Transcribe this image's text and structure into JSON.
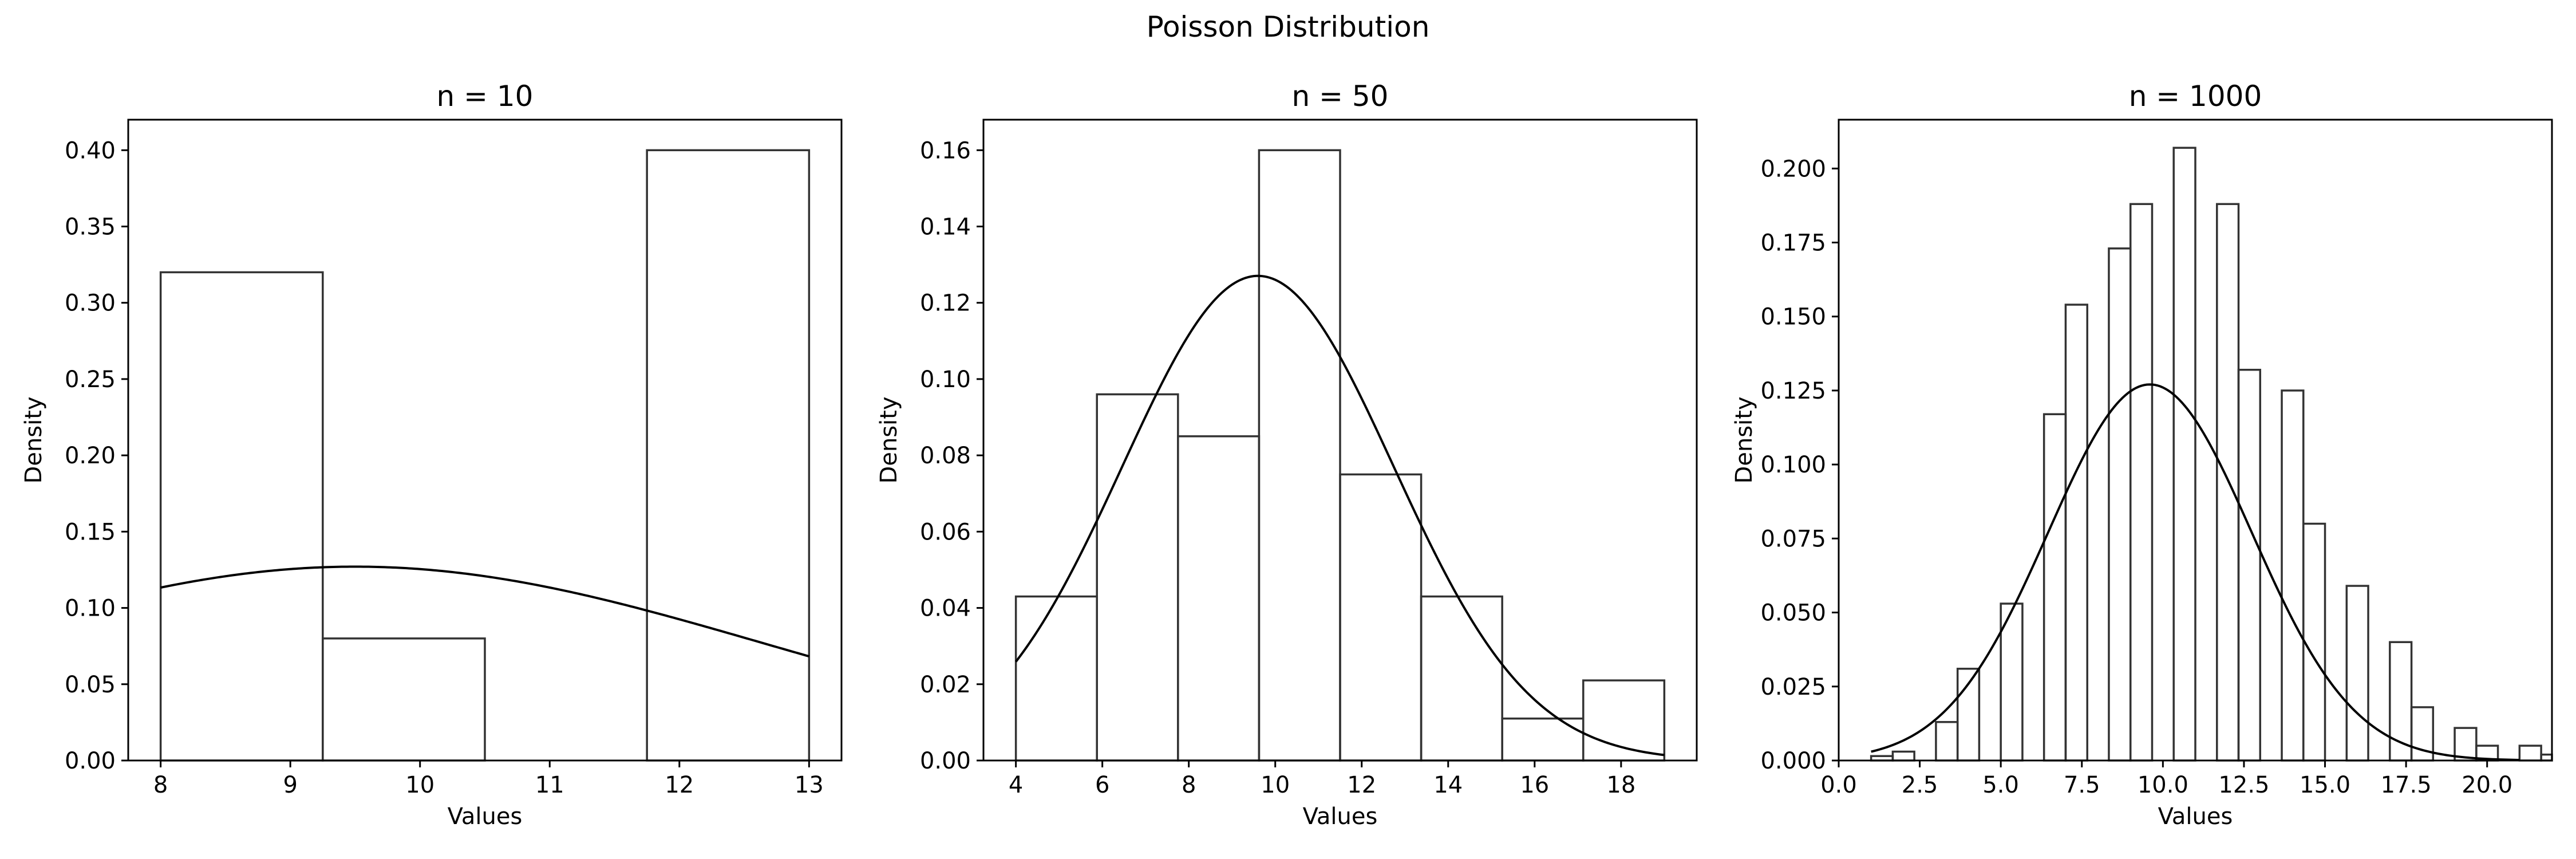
{
  "figure_title": "Poisson Distribution",
  "chart_data": [
    {
      "type": "bar",
      "subtype": "histogram_with_density_curve",
      "title": "n = 10",
      "xlabel": "Values",
      "ylabel": "Density",
      "xlim": [
        7.75,
        13.25
      ],
      "ylim": [
        0,
        0.42
      ],
      "xticks": [
        8,
        9,
        10,
        11,
        12,
        13
      ],
      "xtick_labels": [
        "8",
        "9",
        "10",
        "11",
        "12",
        "13"
      ],
      "yticks": [
        0,
        0.05,
        0.1,
        0.15,
        0.2,
        0.25,
        0.3,
        0.35,
        0.4
      ],
      "ytick_labels": [
        "0.00",
        "0.05",
        "0.10",
        "0.15",
        "0.20",
        "0.25",
        "0.30",
        "0.35",
        "0.40"
      ],
      "bins": [
        {
          "x0": 8.0,
          "x1": 9.25,
          "y": 0.32
        },
        {
          "x0": 9.25,
          "x1": 10.5,
          "y": 0.08
        },
        {
          "x0": 10.5,
          "x1": 11.75,
          "y": 0.0
        },
        {
          "x0": 11.75,
          "x1": 13.0,
          "y": 0.4
        }
      ],
      "curve": {
        "mean": 9.5,
        "sd": 3.14,
        "x_range": [
          8,
          13
        ]
      },
      "bar_color": "#333333",
      "curve_color": "#000000",
      "grid": false
    },
    {
      "type": "bar",
      "subtype": "histogram_with_density_curve",
      "title": "n = 50",
      "xlabel": "Values",
      "ylabel": "Density",
      "xlim": [
        3.25,
        19.75
      ],
      "ylim": [
        0,
        0.168
      ],
      "xticks": [
        4,
        6,
        8,
        10,
        12,
        14,
        16,
        18
      ],
      "xtick_labels": [
        "4",
        "6",
        "8",
        "10",
        "12",
        "14",
        "16",
        "18"
      ],
      "yticks": [
        0,
        0.02,
        0.04,
        0.06,
        0.08,
        0.1,
        0.12,
        0.14,
        0.16
      ],
      "ytick_labels": [
        "0.00",
        "0.02",
        "0.04",
        "0.06",
        "0.08",
        "0.10",
        "0.12",
        "0.14",
        "0.16"
      ],
      "bins": [
        {
          "x0": 4.0,
          "x1": 5.875,
          "y": 0.043
        },
        {
          "x0": 5.875,
          "x1": 7.75,
          "y": 0.096
        },
        {
          "x0": 7.75,
          "x1": 9.625,
          "y": 0.085
        },
        {
          "x0": 9.625,
          "x1": 11.5,
          "y": 0.16
        },
        {
          "x0": 11.5,
          "x1": 13.375,
          "y": 0.075
        },
        {
          "x0": 13.375,
          "x1": 15.25,
          "y": 0.043
        },
        {
          "x0": 15.25,
          "x1": 17.125,
          "y": 0.011
        },
        {
          "x0": 17.125,
          "x1": 19.0,
          "y": 0.021
        }
      ],
      "curve": {
        "mean": 9.6,
        "sd": 3.14,
        "x_range": [
          4,
          19
        ]
      },
      "bar_color": "#333333",
      "curve_color": "#000000",
      "grid": false
    },
    {
      "type": "bar",
      "subtype": "histogram_with_density_curve",
      "title": "n = 1000",
      "xlabel": "Values",
      "ylabel": "Density",
      "xlim": [
        0.0,
        22.0
      ],
      "ylim": [
        0,
        0.2165
      ],
      "xticks": [
        0,
        2.5,
        5,
        7.5,
        10,
        12.5,
        15,
        17.5,
        20
      ],
      "xtick_labels": [
        "0.0",
        "2.5",
        "5.0",
        "7.5",
        "10.0",
        "12.5",
        "15.0",
        "17.5",
        "20.0"
      ],
      "yticks": [
        0,
        0.025,
        0.05,
        0.075,
        0.1,
        0.125,
        0.15,
        0.175,
        0.2
      ],
      "ytick_labels": [
        "0.000",
        "0.025",
        "0.050",
        "0.075",
        "0.100",
        "0.125",
        "0.150",
        "0.175",
        "0.200"
      ],
      "bins": [
        {
          "x0": 1.0,
          "x1": 1.667,
          "y": 0.0015
        },
        {
          "x0": 1.667,
          "x1": 2.333,
          "y": 0.003
        },
        {
          "x0": 2.333,
          "x1": 3.0,
          "y": 0.0
        },
        {
          "x0": 3.0,
          "x1": 3.667,
          "y": 0.013
        },
        {
          "x0": 3.667,
          "x1": 4.333,
          "y": 0.031
        },
        {
          "x0": 4.333,
          "x1": 5.0,
          "y": 0.0
        },
        {
          "x0": 5.0,
          "x1": 5.667,
          "y": 0.053
        },
        {
          "x0": 5.667,
          "x1": 6.333,
          "y": 0.0
        },
        {
          "x0": 6.333,
          "x1": 7.0,
          "y": 0.117
        },
        {
          "x0": 7.0,
          "x1": 7.667,
          "y": 0.154
        },
        {
          "x0": 7.667,
          "x1": 8.333,
          "y": 0.0
        },
        {
          "x0": 8.333,
          "x1": 9.0,
          "y": 0.173
        },
        {
          "x0": 9.0,
          "x1": 9.667,
          "y": 0.188
        },
        {
          "x0": 9.667,
          "x1": 10.333,
          "y": 0.0
        },
        {
          "x0": 10.333,
          "x1": 11.0,
          "y": 0.207
        },
        {
          "x0": 11.0,
          "x1": 11.667,
          "y": 0.0
        },
        {
          "x0": 11.667,
          "x1": 12.333,
          "y": 0.188
        },
        {
          "x0": 12.333,
          "x1": 13.0,
          "y": 0.132
        },
        {
          "x0": 13.0,
          "x1": 13.667,
          "y": 0.0
        },
        {
          "x0": 13.667,
          "x1": 14.333,
          "y": 0.125
        },
        {
          "x0": 14.333,
          "x1": 15.0,
          "y": 0.08
        },
        {
          "x0": 15.0,
          "x1": 15.667,
          "y": 0.0
        },
        {
          "x0": 15.667,
          "x1": 16.333,
          "y": 0.059
        },
        {
          "x0": 16.333,
          "x1": 17.0,
          "y": 0.0
        },
        {
          "x0": 17.0,
          "x1": 17.667,
          "y": 0.04
        },
        {
          "x0": 17.667,
          "x1": 18.333,
          "y": 0.018
        },
        {
          "x0": 18.333,
          "x1": 19.0,
          "y": 0.0
        },
        {
          "x0": 19.0,
          "x1": 19.667,
          "y": 0.011
        },
        {
          "x0": 19.667,
          "x1": 20.333,
          "y": 0.005
        },
        {
          "x0": 20.333,
          "x1": 21.0,
          "y": 0.0
        },
        {
          "x0": 21.0,
          "x1": 21.667,
          "y": 0.005
        },
        {
          "x0": 21.667,
          "x1": 22.0,
          "y": 0.002
        }
      ],
      "curve": {
        "mean": 9.6,
        "sd": 3.14,
        "x_range": [
          1,
          21
        ]
      },
      "bar_color": "#333333",
      "curve_color": "#000000",
      "grid": false
    }
  ]
}
